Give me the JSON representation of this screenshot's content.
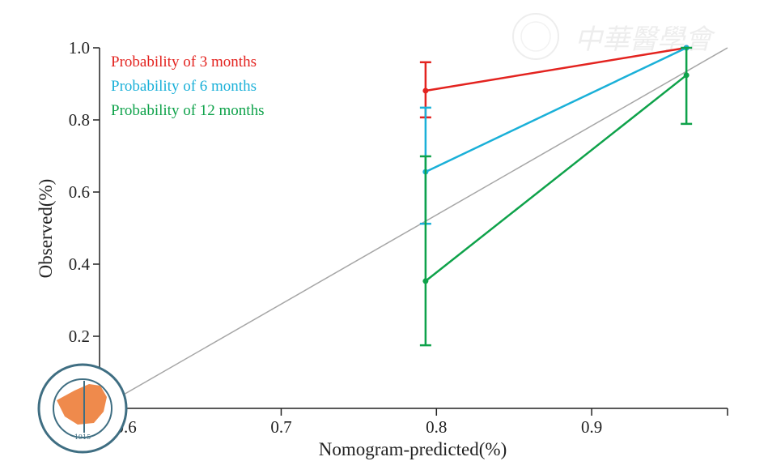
{
  "chart_data": {
    "type": "line",
    "title": "",
    "xlabel": "Nomogram-predicted(%)",
    "ylabel": "Observed(%)",
    "xlim": [
      0.583,
      0.9875
    ],
    "ylim": [
      0.0,
      1.0
    ],
    "xticks": [
      "0.6",
      "0.7",
      "0.8",
      "0.9"
    ],
    "xtick_values": [
      0.6,
      0.7,
      0.8,
      0.9
    ],
    "yticks": [
      "0.0",
      "0.2",
      "0.4",
      "0.6",
      "0.8",
      "1.0"
    ],
    "ytick_values": [
      0.0,
      0.2,
      0.4,
      0.6,
      0.8,
      1.0
    ],
    "grid": false,
    "legend_position": "top-left",
    "reference_line": {
      "from": [
        0.583,
        0.0
      ],
      "to": [
        0.9875,
        1.0
      ],
      "color": "#a6a6a6"
    },
    "series": [
      {
        "name": "Probability of 3 months",
        "color": "#e3231f",
        "x": [
          0.793,
          0.961
        ],
        "y": [
          0.881,
          1.0
        ],
        "lower": [
          0.807,
          null
        ],
        "upper": [
          0.96,
          null
        ]
      },
      {
        "name": "Probability of 6 months",
        "color": "#1ab0d8",
        "x": [
          0.793,
          0.961
        ],
        "y": [
          0.656,
          1.0
        ],
        "lower": [
          0.512,
          null
        ],
        "upper": [
          0.834,
          null
        ]
      },
      {
        "name": "Probability of 12 months",
        "color": "#0ea24a",
        "x": [
          0.793,
          0.961
        ],
        "y": [
          0.353,
          0.924
        ],
        "lower": [
          0.175,
          0.789
        ],
        "upper": [
          0.699,
          1.0
        ]
      }
    ]
  },
  "watermark": {
    "text": "中华医学会",
    "seal_text": "中华医学会 CHINESE MEDICAL ASSOCIATION 1915"
  }
}
